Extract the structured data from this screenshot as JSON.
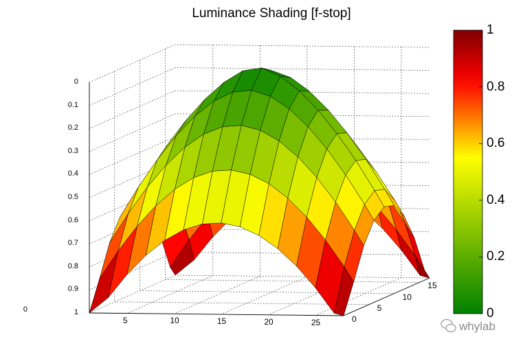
{
  "chart_data": {
    "type": "surface",
    "title": "Luminance Shading [f-stop]",
    "xlabel": "",
    "ylabel": "",
    "zlabel": "",
    "x_ticks": [
      "5",
      "10",
      "15",
      "20",
      "25"
    ],
    "y_ticks": [
      "0",
      "5",
      "10",
      "15"
    ],
    "z_ticks": [
      "0",
      "0.1",
      "0.2",
      "0.3",
      "0.4",
      "0.5",
      "0.6",
      "0.7",
      "0.8",
      "0.9",
      "1"
    ],
    "z_axis_reversed": true,
    "zlim": [
      0,
      1
    ],
    "grid": "on",
    "surface_shape": "dome (vignetting), 0 at center rising to 1 at the corners",
    "colormap": {
      "name": "green-yellow-red",
      "stops": [
        "#008000",
        "#ffff00",
        "#ff0000",
        "#800000"
      ],
      "range": [
        0,
        1
      ],
      "ticks": [
        "0",
        "0.2",
        "0.4",
        "0.6",
        "0.8",
        "1"
      ],
      "placement": "right"
    }
  },
  "watermark": {
    "text": "whylab"
  }
}
